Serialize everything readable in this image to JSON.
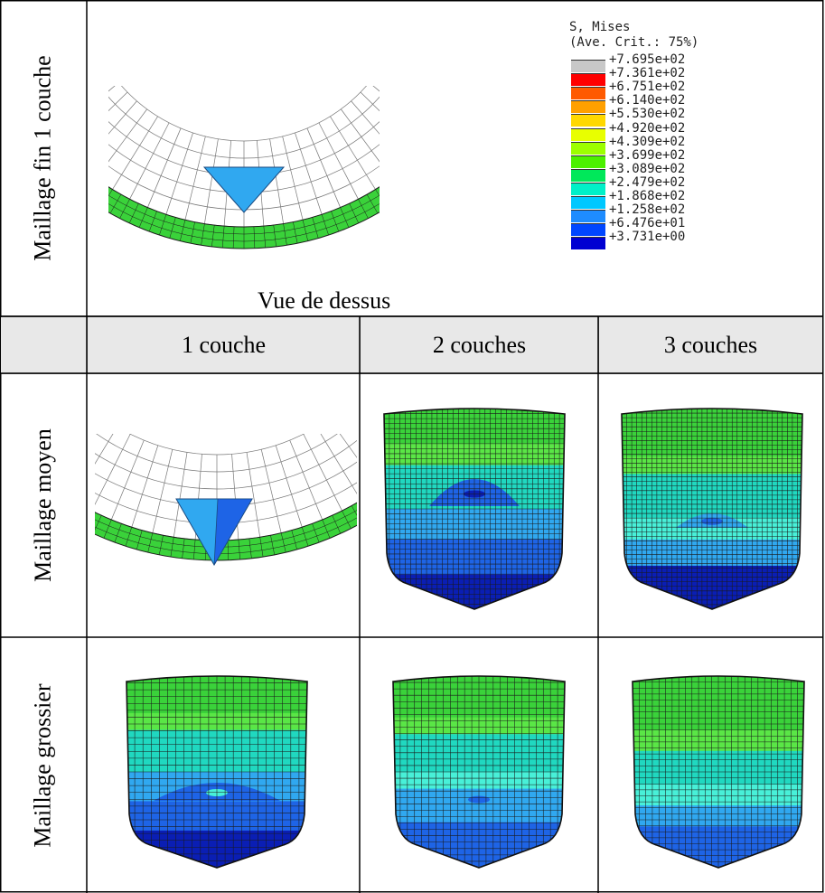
{
  "rows": {
    "fine": "Maillage fin 1 couche",
    "medium": "Maillage moyen",
    "coarse": "Maillage grossier"
  },
  "top_caption": "Vue de dessus",
  "columns": [
    "1 couche",
    "2 couches",
    "3 couches"
  ],
  "legend": {
    "title1": "S, Mises",
    "title2": "(Ave. Crit.: 75%)",
    "ticks": [
      "+7.695e+02",
      "+7.361e+02",
      "+6.751e+02",
      "+6.140e+02",
      "+5.530e+02",
      "+4.920e+02",
      "+4.309e+02",
      "+3.699e+02",
      "+3.089e+02",
      "+2.479e+02",
      "+1.868e+02",
      "+1.258e+02",
      "+6.476e+01",
      "+3.731e+00"
    ],
    "colors": [
      "#c8c8c8",
      "#ff0000",
      "#ff5a00",
      "#ffa000",
      "#ffd800",
      "#e8ff00",
      "#9cff00",
      "#4cf000",
      "#00e85a",
      "#00f0c8",
      "#00c8ff",
      "#1e8cff",
      "#0046ff",
      "#0000d2"
    ]
  },
  "figure_colors": {
    "green": "#3ad23a",
    "green_light": "#5ae646",
    "cyan": "#20d8c0",
    "cyan_light": "#48f0d8",
    "blue_light": "#30a8f0",
    "blue": "#1e64e6",
    "blue_dark": "#0a1eb4",
    "mesh_line": "#1a1a1a"
  }
}
